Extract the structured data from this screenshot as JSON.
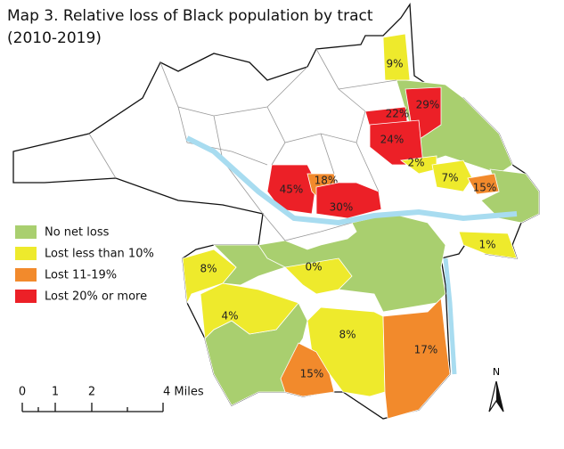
{
  "title": {
    "line1": "Map 3. Relative loss of Black population by tract",
    "line2": "(2010-2019)"
  },
  "legend": [
    {
      "label": "No net loss",
      "color": "#a9cf6f"
    },
    {
      "label": "Lost less than 10%",
      "color": "#eeea2c"
    },
    {
      "label": "Lost 11-19%",
      "color": "#f28a2c"
    },
    {
      "label": "Lost 20% or more",
      "color": "#ec2027"
    }
  ],
  "tracts": [
    {
      "label": "9%",
      "color": "#eeea2c"
    },
    {
      "label": "22%",
      "color": "#ec2027"
    },
    {
      "label": "29%",
      "color": "#ec2027"
    },
    {
      "label": "24%",
      "color": "#ec2027"
    },
    {
      "label": "2%",
      "color": "#eeea2c"
    },
    {
      "label": "7%",
      "color": "#eeea2c"
    },
    {
      "label": "15%",
      "color": "#f28a2c"
    },
    {
      "label": "1%",
      "color": "#eeea2c"
    },
    {
      "label": "45%",
      "color": "#ec2027"
    },
    {
      "label": "18%",
      "color": "#f28a2c"
    },
    {
      "label": "30%",
      "color": "#ec2027"
    },
    {
      "label": "0%",
      "color": "#eeea2c"
    },
    {
      "label": "8%",
      "color": "#eeea2c"
    },
    {
      "label": "4%",
      "color": "#eeea2c"
    },
    {
      "label": "8%",
      "color": "#eeea2c"
    },
    {
      "label": "15%",
      "color": "#f28a2c"
    },
    {
      "label": "17%",
      "color": "#f28a2c"
    }
  ],
  "scale_bar": {
    "labels": [
      "0",
      "1",
      "2",
      "4 Miles"
    ]
  },
  "north_arrow": "N"
}
